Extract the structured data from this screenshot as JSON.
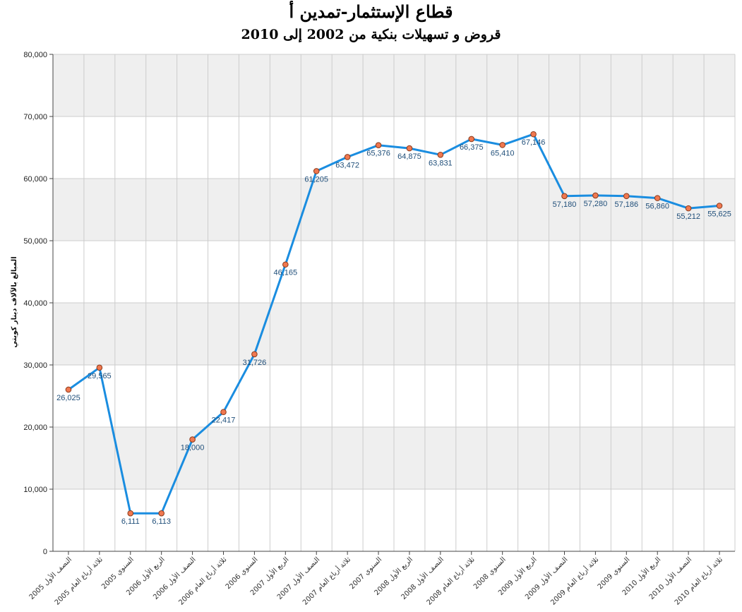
{
  "title": "قطاع الإستثمار-تمدين أ",
  "subtitle": "قروض و تسهيلات بنكية من 2002 إلى 2010",
  "colors": {
    "line": "#1a8de0",
    "marker_fill": "#f07850",
    "marker_stroke": "#8a3a1a",
    "band": "#efefef",
    "grid": "#cccccc",
    "label": "#1f4e79"
  },
  "chart_data": {
    "type": "line",
    "title": "قطاع الإستثمار-تمدين أ",
    "subtitle": "قروض و تسهيلات بنكية من 2002 إلى 2010",
    "xlabel": "",
    "ylabel": "المبالغ بالآلاف دينار كويتي",
    "ylim": [
      0,
      80000
    ],
    "yticks": [
      "0",
      "10,000",
      "20,000",
      "30,000",
      "40,000",
      "50,000",
      "60,000",
      "70,000",
      "80,000"
    ],
    "grid": true,
    "alternate_bands": true,
    "categories": [
      "النصف الأول 2005",
      "ثلاثة أرباع العام 2005",
      "السنوي 2005",
      "الربع الأول 2006",
      "النصف الأول 2006",
      "ثلاثة أرباع العام 2006",
      "السنوي 2006",
      "الربع الأول 2007",
      "النصف الأول 2007",
      "ثلاثة أرباع العام 2007",
      "السنوي 2007",
      "الربع الأول 2008",
      "النصف الأول 2008",
      "ثلاثة أرباع العام 2008",
      "السنوي 2008",
      "الربع الأول 2009",
      "النصف الأول 2009",
      "ثلاثة أرباع العام 2009",
      "السنوي 2009",
      "الربع الأول 2010",
      "النصف الأول 2010",
      "ثلاثة أرباع العام 2010"
    ],
    "values": [
      26025,
      29565,
      6111,
      6113,
      18000,
      22417,
      31726,
      46165,
      61205,
      63472,
      65376,
      64875,
      63831,
      66375,
      65410,
      67146,
      57180,
      57280,
      57186,
      56860,
      55212,
      55625
    ],
    "data_labels": [
      "26,025",
      "29,565",
      "6,111",
      "6,113",
      "18,000",
      "22,417",
      "31,726",
      "46,165",
      "61,205",
      "63,472",
      "65,376",
      "64,875",
      "63,831",
      "66,375",
      "65,410",
      "67,146",
      "57,180",
      "57,280",
      "57,186",
      "56,860",
      "55,212",
      "55,625"
    ]
  }
}
